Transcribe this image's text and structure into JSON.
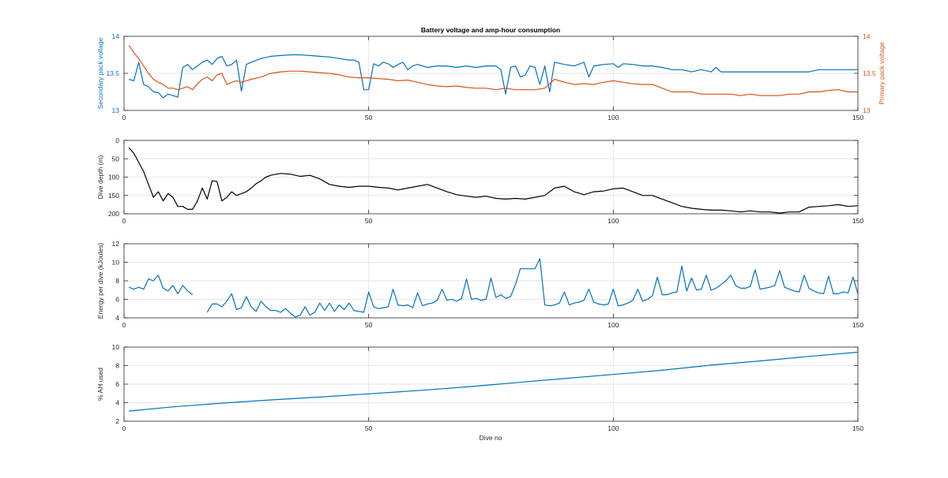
{
  "figure": {
    "title": "Battery voltage and amp-hour consumption",
    "xlabel": "Dive no"
  },
  "colors": {
    "blue": "#0072BD",
    "orange": "#D95319",
    "black": "#000000",
    "axis": "#262626",
    "grid": "#e6e6e6"
  },
  "chart_data": [
    {
      "type": "line",
      "title": "Battery voltage and amp-hour consumption",
      "xlabel": "",
      "ylabel": "Secondary pack voltage",
      "ylabel_right": "Primary pack voltage",
      "xlim": [
        0,
        150
      ],
      "ylim": [
        13,
        14
      ],
      "ylim_right": [
        13,
        14
      ],
      "xticks": [
        0,
        50,
        100,
        150
      ],
      "yticks": [
        13,
        13.5,
        14
      ],
      "yticks_right": [
        13,
        13.5,
        14
      ],
      "ytick_labels": [
        "13",
        "13.5",
        "14"
      ],
      "grid": true,
      "series": [
        {
          "axis": "left",
          "color": "#0072BD",
          "x": [
            1,
            2,
            3,
            4,
            5,
            6,
            7,
            8,
            9,
            10,
            11,
            12,
            13,
            14,
            15,
            16,
            17,
            18,
            19,
            20,
            21,
            22,
            23,
            24,
            25,
            26,
            28,
            30,
            32,
            34,
            36,
            38,
            40,
            42,
            44,
            46,
            47,
            48,
            49,
            50,
            51,
            52,
            53,
            54,
            55,
            56,
            57,
            58,
            59,
            60,
            62,
            64,
            66,
            68,
            70,
            72,
            74,
            76,
            77,
            78,
            79,
            80,
            81,
            82,
            83,
            84,
            85,
            86,
            87,
            88,
            90,
            92,
            94,
            95,
            96,
            98,
            100,
            101,
            102,
            104,
            106,
            108,
            110,
            112,
            114,
            116,
            118,
            120,
            121,
            122,
            124,
            126,
            128,
            130,
            132,
            134,
            136,
            138,
            140,
            142,
            144,
            146,
            148,
            150
          ],
          "values": [
            13.42,
            13.4,
            13.65,
            13.35,
            13.32,
            13.25,
            13.24,
            13.17,
            13.22,
            13.2,
            13.18,
            13.58,
            13.62,
            13.55,
            13.6,
            13.65,
            13.68,
            13.62,
            13.7,
            13.73,
            13.6,
            13.62,
            13.68,
            13.26,
            13.62,
            13.65,
            13.7,
            13.73,
            13.74,
            13.75,
            13.75,
            13.74,
            13.73,
            13.72,
            13.7,
            13.68,
            13.68,
            13.65,
            13.28,
            13.28,
            13.63,
            13.6,
            13.65,
            13.63,
            13.58,
            13.62,
            13.65,
            13.55,
            13.6,
            13.62,
            13.58,
            13.6,
            13.6,
            13.58,
            13.6,
            13.58,
            13.6,
            13.6,
            13.55,
            13.22,
            13.58,
            13.6,
            13.45,
            13.48,
            13.6,
            13.58,
            13.35,
            13.6,
            13.25,
            13.65,
            13.62,
            13.6,
            13.65,
            13.45,
            13.6,
            13.62,
            13.63,
            13.58,
            13.63,
            13.62,
            13.6,
            13.6,
            13.58,
            13.55,
            13.55,
            13.52,
            13.55,
            13.52,
            13.58,
            13.52,
            13.52,
            13.52,
            13.52,
            13.52,
            13.52,
            13.52,
            13.52,
            13.52,
            13.52,
            13.55,
            13.55,
            13.55,
            13.55,
            13.55
          ]
        },
        {
          "axis": "right",
          "color": "#D95319",
          "x": [
            1,
            2,
            3,
            4,
            5,
            6,
            7,
            8,
            9,
            10,
            11,
            12,
            13,
            14,
            15,
            16,
            17,
            18,
            19,
            20,
            21,
            22,
            23,
            24,
            25,
            26,
            28,
            30,
            32,
            34,
            36,
            38,
            40,
            42,
            44,
            46,
            48,
            50,
            52,
            54,
            56,
            58,
            60,
            62,
            64,
            66,
            68,
            70,
            72,
            74,
            76,
            78,
            80,
            82,
            84,
            86,
            88,
            90,
            92,
            94,
            96,
            98,
            100,
            102,
            104,
            106,
            108,
            110,
            112,
            114,
            116,
            118,
            120,
            122,
            124,
            126,
            128,
            130,
            132,
            134,
            136,
            138,
            140,
            142,
            144,
            146,
            148,
            150
          ],
          "values": [
            13.88,
            13.78,
            13.7,
            13.6,
            13.5,
            13.42,
            13.38,
            13.35,
            13.3,
            13.3,
            13.28,
            13.3,
            13.32,
            13.28,
            13.36,
            13.42,
            13.45,
            13.4,
            13.48,
            13.5,
            13.35,
            13.38,
            13.4,
            13.38,
            13.4,
            13.42,
            13.45,
            13.5,
            13.52,
            13.53,
            13.53,
            13.52,
            13.51,
            13.5,
            13.48,
            13.45,
            13.44,
            13.44,
            13.43,
            13.42,
            13.4,
            13.41,
            13.38,
            13.35,
            13.33,
            13.32,
            13.33,
            13.31,
            13.3,
            13.3,
            13.28,
            13.3,
            13.28,
            13.28,
            13.28,
            13.3,
            13.42,
            13.38,
            13.35,
            13.36,
            13.35,
            13.38,
            13.4,
            13.38,
            13.36,
            13.35,
            13.35,
            13.3,
            13.25,
            13.25,
            13.25,
            13.22,
            13.22,
            13.22,
            13.22,
            13.2,
            13.22,
            13.2,
            13.2,
            13.2,
            13.22,
            13.22,
            13.25,
            13.25,
            13.27,
            13.28,
            13.25,
            13.25
          ]
        }
      ]
    },
    {
      "type": "line",
      "title": "",
      "xlabel": "",
      "ylabel": "Dive depth (m)",
      "xlim": [
        0,
        150
      ],
      "ylim": [
        0,
        200
      ],
      "y_reversed": true,
      "xticks": [
        0,
        50,
        100,
        150
      ],
      "yticks": [
        0,
        50,
        100,
        150,
        200
      ],
      "ytick_labels": [
        "0",
        "50",
        "100",
        "150",
        "200"
      ],
      "grid": true,
      "series": [
        {
          "color": "#000000",
          "x": [
            1,
            2,
            3,
            4,
            5,
            6,
            7,
            8,
            9,
            10,
            11,
            12,
            13,
            14,
            15,
            16,
            17,
            18,
            19,
            20,
            21,
            22,
            23,
            24,
            25,
            26,
            27,
            28,
            29,
            30,
            32,
            34,
            36,
            38,
            40,
            42,
            44,
            46,
            48,
            50,
            52,
            54,
            56,
            58,
            60,
            62,
            64,
            66,
            68,
            70,
            72,
            74,
            76,
            78,
            80,
            82,
            84,
            86,
            88,
            90,
            92,
            94,
            96,
            98,
            100,
            102,
            104,
            106,
            108,
            110,
            112,
            114,
            116,
            118,
            120,
            122,
            124,
            126,
            128,
            130,
            132,
            134,
            136,
            138,
            140,
            142,
            144,
            146,
            148,
            150
          ],
          "values": [
            20,
            35,
            60,
            85,
            120,
            155,
            140,
            165,
            145,
            155,
            180,
            180,
            188,
            188,
            165,
            130,
            160,
            110,
            112,
            165,
            155,
            140,
            150,
            145,
            140,
            130,
            118,
            110,
            100,
            95,
            90,
            92,
            98,
            95,
            105,
            120,
            125,
            128,
            125,
            125,
            128,
            130,
            135,
            130,
            125,
            120,
            130,
            140,
            148,
            152,
            155,
            152,
            158,
            160,
            158,
            160,
            155,
            150,
            130,
            125,
            140,
            148,
            140,
            138,
            132,
            130,
            140,
            150,
            150,
            160,
            170,
            180,
            185,
            188,
            190,
            190,
            192,
            195,
            192,
            195,
            195,
            198,
            195,
            195,
            182,
            180,
            178,
            175,
            180,
            178
          ]
        }
      ]
    },
    {
      "type": "line",
      "title": "",
      "xlabel": "",
      "ylabel": "Energy per dive (kJoules)",
      "xlim": [
        0,
        150
      ],
      "ylim": [
        4,
        12
      ],
      "xticks": [
        0,
        50,
        100,
        150
      ],
      "yticks": [
        4,
        6,
        8,
        10,
        12
      ],
      "ytick_labels": [
        "4",
        "6",
        "8",
        "10",
        "12"
      ],
      "grid": true,
      "series": [
        {
          "color": "#0072BD",
          "segments": [
            {
              "x": [
                1,
                2,
                3,
                4,
                5,
                6,
                7,
                8,
                9,
                10,
                11,
                12,
                13,
                14
              ],
              "values": [
                7.3,
                7.1,
                7.3,
                7.1,
                8.2,
                8.0,
                8.6,
                7.2,
                6.9,
                7.5,
                6.6,
                7.5,
                6.9,
                6.5
              ]
            },
            {
              "x": [
                17,
                18,
                19,
                20,
                21,
                22,
                23,
                24,
                25,
                26,
                27,
                28,
                29,
                30,
                31,
                32,
                33,
                34,
                35,
                36,
                37,
                38,
                39,
                40,
                41,
                42,
                43,
                44,
                45,
                46,
                47,
                48,
                49,
                50,
                51,
                52,
                53,
                54,
                55,
                56,
                57,
                58,
                59,
                60,
                61,
                62,
                63,
                64,
                65,
                66,
                67,
                68,
                69,
                70,
                71,
                72,
                73,
                74,
                75,
                76,
                77,
                78,
                79,
                80,
                81,
                82,
                83,
                84,
                85,
                86,
                87,
                88,
                89,
                90,
                91,
                92,
                93,
                94,
                95,
                96,
                97,
                98,
                99,
                100,
                101,
                102,
                103,
                104,
                105,
                106,
                107,
                108,
                109,
                110,
                111,
                112,
                113,
                114,
                115,
                116,
                117,
                118,
                119,
                120,
                121,
                122,
                123,
                124,
                125,
                126,
                127,
                128,
                129,
                130,
                131,
                132,
                133,
                134,
                135,
                136,
                137,
                138,
                139,
                140,
                141,
                142,
                143,
                144,
                145,
                146,
                147,
                148,
                149,
                150
              ],
              "values": [
                4.6,
                5.5,
                5.5,
                5.2,
                5.8,
                6.6,
                4.9,
                5.1,
                6.3,
                5.2,
                4.7,
                5.8,
                5.2,
                4.8,
                4.8,
                4.6,
                5.0,
                4.5,
                4.1,
                4.3,
                5.2,
                4.3,
                4.6,
                5.6,
                4.8,
                5.6,
                4.7,
                5.4,
                4.9,
                5.6,
                4.8,
                4.7,
                4.6,
                6.8,
                5.2,
                5.0,
                5.1,
                5.2,
                7.1,
                5.4,
                5.3,
                5.4,
                5.1,
                6.7,
                5.3,
                5.5,
                5.6,
                5.9,
                7.1,
                5.9,
                6.0,
                5.8,
                6.1,
                8.2,
                6.0,
                6.1,
                5.9,
                6.0,
                8.3,
                6.2,
                6.5,
                6.1,
                6.3,
                7.6,
                9.3,
                9.3,
                9.3,
                9.3,
                10.4,
                5.4,
                5.3,
                5.4,
                5.6,
                6.8,
                5.4,
                5.6,
                5.7,
                5.9,
                7.1,
                5.7,
                5.5,
                5.4,
                5.5,
                7.1,
                5.3,
                5.4,
                5.6,
                5.9,
                7.1,
                5.8,
                6.0,
                6.4,
                8.4,
                6.5,
                6.5,
                6.7,
                6.8,
                9.6,
                6.9,
                8.3,
                7.0,
                7.1,
                8.6,
                7.0,
                7.2,
                7.6,
                8.0,
                8.6,
                7.5,
                7.2,
                7.2,
                7.4,
                9.2,
                7.1,
                7.2,
                7.3,
                7.5,
                9.1,
                7.3,
                7.1,
                6.9,
                6.8,
                8.6,
                7.2,
                6.9,
                6.7,
                6.6,
                8.5,
                6.6,
                6.6,
                6.8,
                6.7,
                8.4,
                6.6
              ]
            }
          ]
        }
      ]
    },
    {
      "type": "line",
      "title": "",
      "xlabel": "Dive no",
      "ylabel": "% AH used",
      "xlim": [
        0,
        150
      ],
      "ylim": [
        2,
        10
      ],
      "xticks": [
        0,
        50,
        100,
        150
      ],
      "yticks": [
        2,
        4,
        6,
        8,
        10
      ],
      "ytick_labels": [
        "2",
        "4",
        "6",
        "8",
        "10"
      ],
      "xtick_labels": [
        "0",
        "50",
        "100",
        "150"
      ],
      "grid": true,
      "series": [
        {
          "color": "#0072BD",
          "x": [
            1,
            10,
            20,
            30,
            40,
            50,
            60,
            70,
            80,
            90,
            100,
            110,
            120,
            130,
            140,
            150
          ],
          "values": [
            3.1,
            3.55,
            3.95,
            4.3,
            4.6,
            4.95,
            5.3,
            5.7,
            6.15,
            6.6,
            7.05,
            7.5,
            8.05,
            8.5,
            9.0,
            9.45
          ]
        }
      ]
    }
  ]
}
